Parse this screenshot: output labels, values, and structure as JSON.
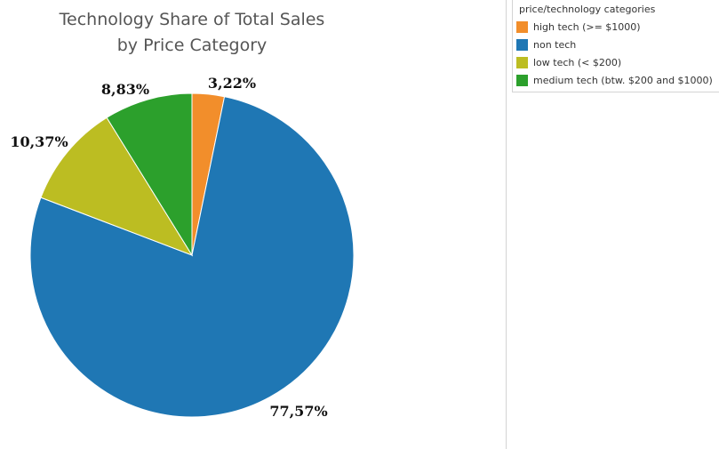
{
  "chart_data": {
    "type": "pie",
    "title": "Technology Share of Total Sales",
    "subtitle": "by Price Category",
    "slices": [
      {
        "name": "high tech (>= $1000)",
        "value": 3.22,
        "label": "3,22%",
        "color": "#f28e2b"
      },
      {
        "name": "non tech",
        "value": 77.57,
        "label": "77,57%",
        "color": "#1f77b4"
      },
      {
        "name": "low tech (< $200)",
        "value": 10.37,
        "label": "10,37%",
        "color": "#bcbd22"
      },
      {
        "name": "medium tech (btw. $200 and $1000)",
        "value": 8.83,
        "label": "8,83%",
        "color": "#2ca02c"
      }
    ],
    "legend": {
      "title": "price/technology categories",
      "placement": "top-right"
    }
  }
}
